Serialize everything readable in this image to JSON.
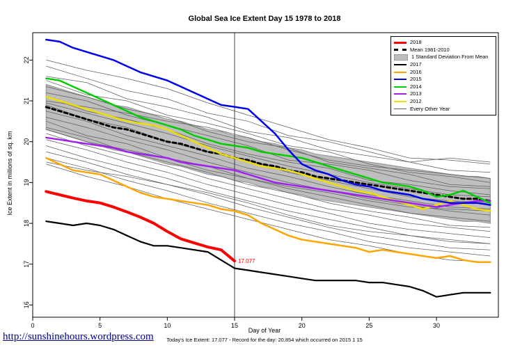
{
  "title": "Global Sea Ice Extent Day 15 1978 to 2018",
  "footer": {
    "url": "http://sunshinehours.wordpress.com",
    "subtitle": "Today's Ice Extent: 17.077  - Record for the day: 20.854 which occurred on 2015 1 15"
  },
  "legend": {
    "items": [
      "2018",
      "Mean 1981-2010",
      "1 Standard Deviation From Mean",
      "2017",
      "2016",
      "2015",
      "2014",
      "2013",
      "2012",
      "Every Other Year"
    ]
  },
  "chart_data": {
    "type": "line",
    "title": "Global Sea Ice Extent Day 15 1978 to 2018",
    "xlabel": "Day of Year",
    "ylabel": "Ice Extent in millions of sq. km",
    "xlim": [
      0,
      34.6
    ],
    "ylim": [
      15.7,
      22.67
    ],
    "xticks": [
      0,
      5,
      10,
      15,
      20,
      25,
      30
    ],
    "yticks": [
      16,
      17,
      18,
      19,
      20,
      21,
      22
    ],
    "grid": false,
    "legend_position": "top-right",
    "vline_x": 15,
    "annotation": {
      "x": 15,
      "y": 17.077,
      "text": "17.077",
      "color": "#FF0000"
    },
    "band": {
      "name": "1 Standard Deviation From Mean",
      "mean_series": "Mean 1981-2010",
      "std": 0.55,
      "color": "#BEBEBE",
      "edge_color": "#999999"
    },
    "series": [
      {
        "name": "Mean 1981-2010",
        "color": "#000000",
        "width": 3,
        "dash": "5 4",
        "values": [
          20.85,
          20.75,
          20.65,
          20.55,
          20.45,
          20.35,
          20.3,
          20.2,
          20.1,
          20.0,
          19.95,
          19.85,
          19.75,
          19.7,
          19.6,
          19.55,
          19.45,
          19.4,
          19.3,
          19.25,
          19.15,
          19.1,
          19.05,
          19.0,
          18.95,
          18.9,
          18.85,
          18.8,
          18.75,
          18.7,
          18.65,
          18.6,
          18.6,
          18.55
        ]
      },
      {
        "name": "2012",
        "color": "#EFDE00",
        "width": 2.5,
        "values": [
          21.1,
          21.0,
          20.9,
          20.8,
          20.7,
          20.6,
          20.5,
          20.45,
          20.4,
          20.3,
          20.15,
          20.0,
          19.85,
          19.7,
          19.6,
          19.5,
          19.4,
          19.35,
          19.3,
          19.2,
          19.1,
          19.0,
          18.9,
          18.8,
          18.75,
          18.65,
          18.55,
          18.45,
          18.35,
          18.45,
          18.55,
          18.45,
          18.35,
          18.3
        ]
      },
      {
        "name": "2013",
        "color": "#A020F0",
        "width": 2.5,
        "values": [
          20.1,
          20.05,
          20.0,
          19.95,
          19.9,
          19.85,
          19.75,
          19.7,
          19.65,
          19.6,
          19.5,
          19.45,
          19.4,
          19.35,
          19.3,
          19.2,
          19.1,
          19.0,
          18.95,
          18.9,
          18.85,
          18.8,
          18.75,
          18.7,
          18.65,
          18.6,
          18.55,
          18.5,
          18.45,
          18.4,
          18.45,
          18.5,
          18.55,
          18.55
        ]
      },
      {
        "name": "2014",
        "color": "#00CC00",
        "width": 2.5,
        "values": [
          21.55,
          21.5,
          21.35,
          21.2,
          21.05,
          20.9,
          20.75,
          20.6,
          20.5,
          20.4,
          20.3,
          20.15,
          20.05,
          19.95,
          19.9,
          19.85,
          19.75,
          19.7,
          19.65,
          19.6,
          19.5,
          19.4,
          19.3,
          19.2,
          19.1,
          19.0,
          18.95,
          18.9,
          18.8,
          18.65,
          18.7,
          18.8,
          18.65,
          18.5
        ]
      },
      {
        "name": "2015",
        "color": "#0000EE",
        "width": 2.5,
        "values": [
          22.5,
          22.45,
          22.3,
          22.2,
          22.1,
          22.0,
          21.85,
          21.7,
          21.6,
          21.5,
          21.35,
          21.2,
          21.05,
          20.9,
          20.854,
          20.8,
          20.5,
          20.2,
          19.8,
          19.45,
          19.3,
          19.2,
          19.05,
          18.95,
          18.9,
          18.8,
          18.75,
          18.7,
          18.6,
          18.55,
          18.5,
          18.5,
          18.5,
          18.45
        ]
      },
      {
        "name": "2016",
        "color": "#FFA500",
        "width": 2.5,
        "values": [
          19.6,
          19.45,
          19.3,
          19.25,
          19.2,
          19.05,
          18.9,
          18.75,
          18.65,
          18.6,
          18.55,
          18.5,
          18.45,
          18.35,
          18.3,
          18.2,
          18.0,
          17.85,
          17.7,
          17.6,
          17.55,
          17.5,
          17.45,
          17.4,
          17.3,
          17.35,
          17.3,
          17.25,
          17.2,
          17.15,
          17.2,
          17.1,
          17.05,
          17.05
        ]
      },
      {
        "name": "2017",
        "color": "#000000",
        "width": 2.2,
        "values": [
          18.05,
          18.0,
          17.95,
          18.0,
          17.95,
          17.85,
          17.7,
          17.55,
          17.45,
          17.45,
          17.4,
          17.35,
          17.3,
          17.1,
          16.9,
          16.85,
          16.8,
          16.75,
          16.7,
          16.65,
          16.6,
          16.6,
          16.6,
          16.6,
          16.55,
          16.55,
          16.5,
          16.45,
          16.35,
          16.2,
          16.25,
          16.3,
          16.3,
          16.3
        ]
      },
      {
        "name": "2018",
        "color": "#FF0000",
        "width": 4,
        "values": [
          18.78,
          18.7,
          18.62,
          18.55,
          18.5,
          18.4,
          18.28,
          18.15,
          18.0,
          17.8,
          17.62,
          17.52,
          17.42,
          17.35,
          17.077
        ]
      }
    ],
    "other_years": {
      "name": "Every Other Year",
      "color": "#5E5E5E",
      "width": 0.75,
      "days": [
        1,
        4,
        7,
        10,
        13,
        16,
        19,
        22,
        25,
        28,
        31,
        34
      ],
      "lines": [
        [
          22.0,
          21.75,
          21.55,
          21.3,
          20.95,
          20.65,
          20.35,
          20.05,
          19.85,
          19.6,
          19.55,
          19.45
        ],
        [
          21.85,
          21.55,
          21.25,
          21.05,
          20.7,
          20.5,
          20.15,
          20.0,
          19.75,
          19.5,
          19.6,
          19.5
        ],
        [
          21.6,
          21.45,
          21.05,
          20.85,
          20.6,
          20.25,
          20.1,
          19.8,
          19.65,
          19.5,
          19.3,
          19.25
        ],
        [
          21.5,
          21.15,
          21.0,
          20.65,
          20.45,
          20.2,
          19.9,
          19.75,
          19.45,
          19.25,
          19.15,
          19.0
        ],
        [
          21.35,
          21.1,
          20.8,
          20.6,
          20.25,
          20.0,
          19.85,
          19.5,
          19.35,
          19.2,
          18.95,
          18.9
        ],
        [
          21.2,
          21.0,
          20.65,
          20.4,
          20.15,
          19.9,
          19.55,
          19.45,
          19.3,
          19.05,
          18.9,
          18.85
        ],
        [
          21.1,
          20.75,
          20.55,
          20.3,
          19.95,
          19.7,
          19.5,
          19.35,
          19.05,
          18.95,
          18.8,
          18.7
        ],
        [
          21.0,
          20.85,
          20.7,
          20.5,
          20.35,
          20.1,
          19.8,
          19.55,
          19.4,
          19.3,
          19.2,
          19.1
        ],
        [
          20.95,
          20.7,
          20.45,
          20.2,
          19.9,
          19.65,
          19.4,
          19.2,
          19.0,
          18.85,
          18.7,
          18.65
        ],
        [
          20.9,
          20.55,
          20.35,
          20.0,
          19.75,
          19.55,
          19.25,
          19.05,
          18.85,
          18.65,
          18.55,
          18.5
        ],
        [
          20.75,
          20.5,
          20.15,
          19.9,
          19.65,
          19.35,
          19.15,
          18.9,
          18.7,
          18.55,
          18.4,
          18.35
        ],
        [
          20.6,
          20.35,
          20.05,
          19.8,
          19.5,
          19.25,
          19.0,
          18.8,
          18.6,
          18.45,
          18.3,
          18.2
        ],
        [
          20.5,
          20.15,
          19.95,
          19.6,
          19.4,
          19.1,
          18.85,
          18.65,
          18.45,
          18.25,
          18.15,
          18.05
        ],
        [
          20.35,
          20.1,
          19.75,
          19.5,
          19.25,
          18.95,
          18.75,
          18.5,
          18.3,
          18.15,
          17.95,
          17.9
        ],
        [
          20.3,
          20.0,
          19.8,
          19.6,
          19.3,
          19.1,
          18.9,
          18.75,
          18.55,
          18.4,
          18.35,
          18.3
        ],
        [
          20.2,
          19.9,
          19.65,
          19.4,
          19.1,
          18.85,
          18.6,
          18.35,
          18.2,
          18.0,
          17.9,
          17.8
        ],
        [
          20.05,
          19.8,
          19.5,
          19.25,
          18.95,
          18.7,
          18.45,
          18.25,
          18.0,
          17.85,
          17.75,
          17.65
        ],
        [
          19.9,
          19.6,
          19.35,
          19.1,
          18.8,
          18.55,
          18.3,
          18.1,
          17.9,
          17.7,
          17.6,
          17.5
        ],
        [
          19.75,
          19.5,
          19.2,
          18.95,
          18.7,
          18.4,
          18.15,
          17.9,
          17.7,
          17.55,
          17.4,
          17.35
        ],
        [
          19.6,
          19.35,
          19.05,
          18.8,
          18.5,
          18.25,
          18.0,
          17.8,
          17.55,
          17.4,
          17.3,
          17.2
        ],
        [
          19.5,
          19.3,
          19.15,
          18.95,
          18.75,
          18.5,
          18.2,
          17.95,
          17.8,
          17.7,
          17.55,
          17.5
        ],
        [
          19.45,
          19.15,
          18.9,
          18.6,
          18.35,
          18.1,
          17.85,
          17.6,
          17.45,
          17.25,
          17.1,
          17.05
        ]
      ]
    }
  }
}
